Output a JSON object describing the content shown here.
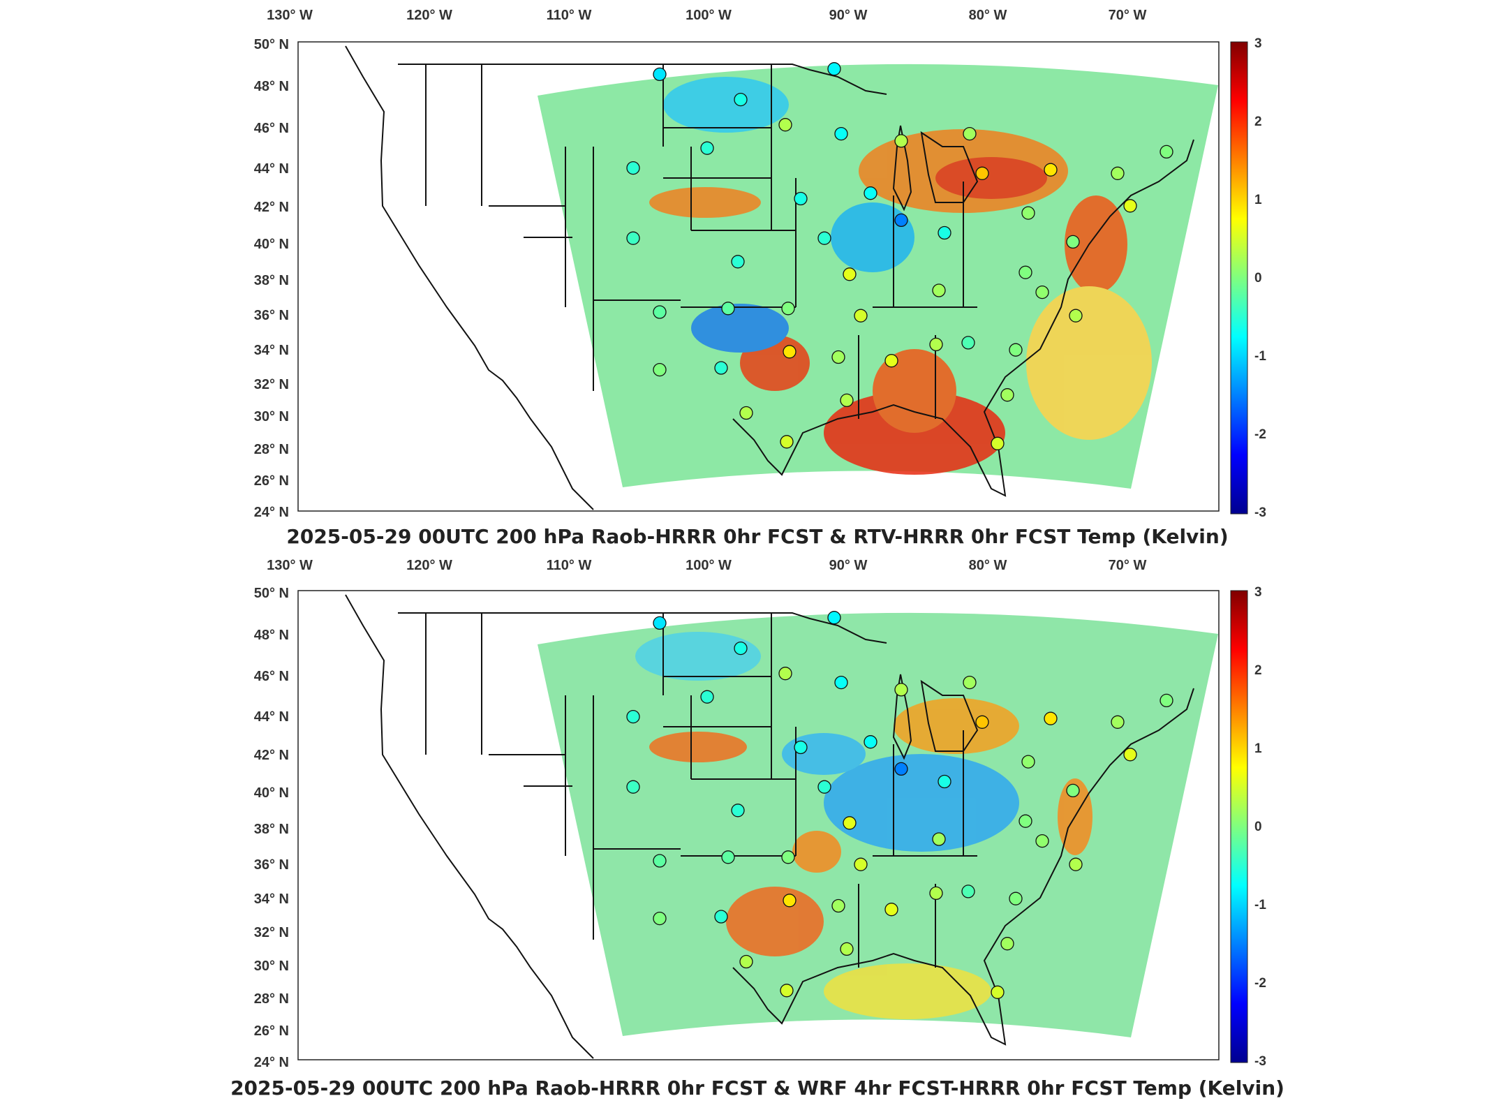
{
  "panels": [
    {
      "title": "2025-05-29 00UTC 200 hPa Raob-HRRR 0hr FCST & RTV-HRRR 0hr FCST Temp (Kelvin)",
      "lon_labels": [
        "130° W",
        "120° W",
        "110° W",
        "100° W",
        "90° W",
        "80° W",
        "70° W"
      ],
      "lat_labels": [
        "50° N",
        "48° N",
        "46° N",
        "44° N",
        "42° N",
        "40° N",
        "38° N",
        "36° N",
        "34° N",
        "32° N",
        "30° N",
        "28° N",
        "26° N",
        "24° N"
      ],
      "colorbar_ticks": [
        "3",
        "2",
        "1",
        "0",
        "-1",
        "-2",
        "-3"
      ],
      "stations": [
        {
          "lon": -106.6,
          "lat": 48.2,
          "v": -0.9
        },
        {
          "lon": -94.1,
          "lat": 48.5,
          "v": -0.8
        },
        {
          "lon": -100.8,
          "lat": 46.8,
          "v": -0.6
        },
        {
          "lon": -97.6,
          "lat": 45.4,
          "v": 0.3
        },
        {
          "lon": -103.2,
          "lat": 44.1,
          "v": -0.5
        },
        {
          "lon": -108.5,
          "lat": 43.0,
          "v": -0.5
        },
        {
          "lon": -93.6,
          "lat": 44.9,
          "v": -0.7
        },
        {
          "lon": -89.3,
          "lat": 44.5,
          "v": 0.3
        },
        {
          "lon": -84.4,
          "lat": 44.9,
          "v": 0.2
        },
        {
          "lon": -83.5,
          "lat": 42.7,
          "v": 1.1
        },
        {
          "lon": -78.6,
          "lat": 42.9,
          "v": 0.9
        },
        {
          "lon": -73.8,
          "lat": 42.7,
          "v": 0.2
        },
        {
          "lon": -70.3,
          "lat": 43.9,
          "v": 0.0
        },
        {
          "lon": -72.9,
          "lat": 40.9,
          "v": 0.6
        },
        {
          "lon": -96.5,
          "lat": 41.3,
          "v": -0.6
        },
        {
          "lon": -91.5,
          "lat": 41.6,
          "v": -0.7
        },
        {
          "lon": -89.3,
          "lat": 40.1,
          "v": -1.5
        },
        {
          "lon": -86.2,
          "lat": 39.4,
          "v": -0.6
        },
        {
          "lon": -80.2,
          "lat": 40.5,
          "v": 0.1
        },
        {
          "lon": -77.0,
          "lat": 38.9,
          "v": 0.0
        },
        {
          "lon": -94.8,
          "lat": 39.1,
          "v": -0.5
        },
        {
          "lon": -101.0,
          "lat": 37.8,
          "v": -0.5
        },
        {
          "lon": -108.5,
          "lat": 39.1,
          "v": -0.4
        },
        {
          "lon": -93.0,
          "lat": 37.1,
          "v": 0.6
        },
        {
          "lon": -86.6,
          "lat": 36.2,
          "v": 0.2
        },
        {
          "lon": -80.4,
          "lat": 37.2,
          "v": 0.0
        },
        {
          "lon": -79.2,
          "lat": 36.1,
          "v": 0.1
        },
        {
          "lon": -76.8,
          "lat": 34.8,
          "v": 0.3
        },
        {
          "lon": -106.6,
          "lat": 35.0,
          "v": -0.2
        },
        {
          "lon": -101.7,
          "lat": 35.2,
          "v": -0.2
        },
        {
          "lon": -97.4,
          "lat": 35.2,
          "v": 0.0
        },
        {
          "lon": -92.2,
          "lat": 34.8,
          "v": 0.5
        },
        {
          "lon": -97.3,
          "lat": 32.8,
          "v": 0.9
        },
        {
          "lon": -93.8,
          "lat": 32.5,
          "v": 0.2
        },
        {
          "lon": -90.0,
          "lat": 32.3,
          "v": 0.6
        },
        {
          "lon": -86.8,
          "lat": 33.2,
          "v": 0.3
        },
        {
          "lon": -84.5,
          "lat": 33.3,
          "v": -0.3
        },
        {
          "lon": -81.1,
          "lat": 32.9,
          "v": 0.0
        },
        {
          "lon": -106.6,
          "lat": 31.8,
          "v": 0.0
        },
        {
          "lon": -102.2,
          "lat": 31.9,
          "v": -0.5
        },
        {
          "lon": -100.4,
          "lat": 29.4,
          "v": 0.3
        },
        {
          "lon": -97.5,
          "lat": 27.8,
          "v": 0.5
        },
        {
          "lon": -93.2,
          "lat": 30.1,
          "v": 0.3
        },
        {
          "lon": -81.7,
          "lat": 30.4,
          "v": 0.2
        },
        {
          "lon": -82.4,
          "lat": 27.7,
          "v": 0.5
        }
      ]
    },
    {
      "title": "2025-05-29 00UTC 200 hPa Raob-HRRR 0hr FCST & WRF 4hr FCST-HRRR 0hr FCST Temp (Kelvin)",
      "lon_labels": [
        "130° W",
        "120° W",
        "110° W",
        "100° W",
        "90° W",
        "80° W",
        "70° W"
      ],
      "lat_labels": [
        "50° N",
        "48° N",
        "46° N",
        "44° N",
        "42° N",
        "40° N",
        "38° N",
        "36° N",
        "34° N",
        "32° N",
        "30° N",
        "28° N",
        "26° N",
        "24° N"
      ],
      "colorbar_ticks": [
        "3",
        "2",
        "1",
        "0",
        "-1",
        "-2",
        "-3"
      ],
      "stations": [
        {
          "lon": -106.6,
          "lat": 48.2,
          "v": -0.9
        },
        {
          "lon": -94.1,
          "lat": 48.5,
          "v": -0.8
        },
        {
          "lon": -100.8,
          "lat": 46.8,
          "v": -0.6
        },
        {
          "lon": -97.6,
          "lat": 45.4,
          "v": 0.3
        },
        {
          "lon": -103.2,
          "lat": 44.1,
          "v": -0.5
        },
        {
          "lon": -108.5,
          "lat": 43.0,
          "v": -0.5
        },
        {
          "lon": -93.6,
          "lat": 44.9,
          "v": -0.7
        },
        {
          "lon": -89.3,
          "lat": 44.5,
          "v": 0.3
        },
        {
          "lon": -84.4,
          "lat": 44.9,
          "v": 0.2
        },
        {
          "lon": -83.5,
          "lat": 42.7,
          "v": 1.1
        },
        {
          "lon": -78.6,
          "lat": 42.9,
          "v": 0.9
        },
        {
          "lon": -73.8,
          "lat": 42.7,
          "v": 0.2
        },
        {
          "lon": -70.3,
          "lat": 43.9,
          "v": 0.0
        },
        {
          "lon": -72.9,
          "lat": 40.9,
          "v": 0.6
        },
        {
          "lon": -96.5,
          "lat": 41.3,
          "v": -0.6
        },
        {
          "lon": -91.5,
          "lat": 41.6,
          "v": -0.7
        },
        {
          "lon": -89.3,
          "lat": 40.1,
          "v": -1.5
        },
        {
          "lon": -86.2,
          "lat": 39.4,
          "v": -0.6
        },
        {
          "lon": -80.2,
          "lat": 40.5,
          "v": 0.1
        },
        {
          "lon": -77.0,
          "lat": 38.9,
          "v": 0.0
        },
        {
          "lon": -94.8,
          "lat": 39.1,
          "v": -0.5
        },
        {
          "lon": -101.0,
          "lat": 37.8,
          "v": -0.5
        },
        {
          "lon": -108.5,
          "lat": 39.1,
          "v": -0.4
        },
        {
          "lon": -93.0,
          "lat": 37.1,
          "v": 0.6
        },
        {
          "lon": -86.6,
          "lat": 36.2,
          "v": 0.2
        },
        {
          "lon": -80.4,
          "lat": 37.2,
          "v": 0.0
        },
        {
          "lon": -79.2,
          "lat": 36.1,
          "v": 0.1
        },
        {
          "lon": -76.8,
          "lat": 34.8,
          "v": 0.3
        },
        {
          "lon": -106.6,
          "lat": 35.0,
          "v": -0.2
        },
        {
          "lon": -101.7,
          "lat": 35.2,
          "v": -0.2
        },
        {
          "lon": -97.4,
          "lat": 35.2,
          "v": 0.0
        },
        {
          "lon": -92.2,
          "lat": 34.8,
          "v": 0.5
        },
        {
          "lon": -97.3,
          "lat": 32.8,
          "v": 0.9
        },
        {
          "lon": -93.8,
          "lat": 32.5,
          "v": 0.2
        },
        {
          "lon": -90.0,
          "lat": 32.3,
          "v": 0.6
        },
        {
          "lon": -86.8,
          "lat": 33.2,
          "v": 0.3
        },
        {
          "lon": -84.5,
          "lat": 33.3,
          "v": -0.3
        },
        {
          "lon": -81.1,
          "lat": 32.9,
          "v": 0.0
        },
        {
          "lon": -106.6,
          "lat": 31.8,
          "v": 0.0
        },
        {
          "lon": -102.2,
          "lat": 31.9,
          "v": -0.5
        },
        {
          "lon": -100.4,
          "lat": 29.4,
          "v": 0.3
        },
        {
          "lon": -97.5,
          "lat": 27.8,
          "v": 0.5
        },
        {
          "lon": -93.2,
          "lat": 30.1,
          "v": 0.3
        },
        {
          "lon": -81.7,
          "lat": 30.4,
          "v": 0.2
        },
        {
          "lon": -82.4,
          "lat": 27.7,
          "v": 0.5
        }
      ]
    }
  ],
  "colormap": "jet",
  "value_range": [
    -3,
    3
  ]
}
